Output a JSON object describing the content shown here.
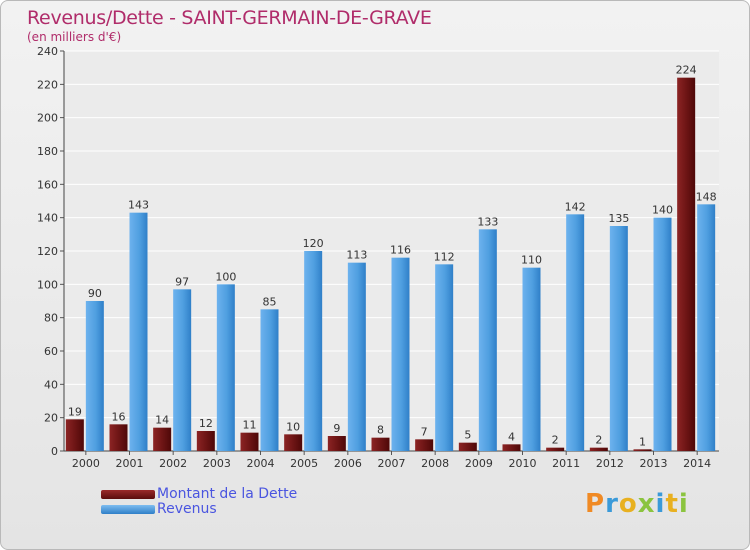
{
  "chart_data": {
    "type": "bar",
    "title": "Revenus/Dette - SAINT-GERMAIN-DE-GRAVE",
    "subtitle": "(en milliers d'€)",
    "categories": [
      "2000",
      "2001",
      "2002",
      "2003",
      "2004",
      "2005",
      "2006",
      "2007",
      "2008",
      "2009",
      "2010",
      "2011",
      "2012",
      "2013",
      "2014"
    ],
    "series": [
      {
        "name": "Montant de la Dette",
        "color": "#7a1a1a",
        "values": [
          19,
          16,
          14,
          12,
          11,
          10,
          9,
          8,
          7,
          5,
          4,
          2,
          2,
          1,
          224
        ]
      },
      {
        "name": "Revenus",
        "color": "#4f9fe0",
        "values": [
          90,
          143,
          97,
          100,
          85,
          120,
          113,
          116,
          112,
          133,
          110,
          142,
          135,
          140,
          148
        ]
      }
    ],
    "ylim": [
      0,
      240
    ],
    "yticks": [
      0,
      20,
      40,
      60,
      80,
      100,
      120,
      140,
      160,
      180,
      200,
      220,
      240
    ],
    "grid": true,
    "legend_position": "bottom-left"
  },
  "logo": {
    "letters": [
      "P",
      "r",
      "o",
      "x",
      "i",
      "t",
      "i"
    ],
    "colors": [
      "#f08a24",
      "#3a9ad9",
      "#e8b020",
      "#8bc43f",
      "#3a9ad9",
      "#e8b020",
      "#8bc43f"
    ]
  }
}
